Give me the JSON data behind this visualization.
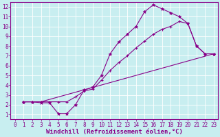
{
  "xlabel": "Windchill (Refroidissement éolien,°C)",
  "bg_color": "#c8eef0",
  "line_color": "#880088",
  "grid_color": "#aadddd",
  "xlim": [
    -0.5,
    23.5
  ],
  "ylim": [
    0.5,
    12.5
  ],
  "xticks": [
    0,
    1,
    2,
    3,
    4,
    5,
    6,
    7,
    8,
    9,
    10,
    11,
    12,
    13,
    14,
    15,
    16,
    17,
    18,
    19,
    20,
    21,
    22,
    23
  ],
  "yticks": [
    1,
    2,
    3,
    4,
    5,
    6,
    7,
    8,
    9,
    10,
    11,
    12
  ],
  "line1_x": [
    1,
    2,
    3,
    4,
    5,
    6,
    7,
    8,
    9,
    10,
    11,
    12,
    13,
    14,
    15,
    16,
    17,
    18,
    19,
    20,
    21,
    22,
    23
  ],
  "line1_y": [
    2.3,
    2.3,
    2.2,
    2.2,
    1.1,
    1.1,
    2.0,
    3.5,
    3.8,
    5.0,
    7.2,
    8.4,
    9.2,
    10.0,
    11.5,
    12.2,
    11.8,
    11.4,
    11.0,
    10.3,
    8.0,
    7.2,
    7.2
  ],
  "line2_x": [
    1,
    2,
    3,
    4,
    5,
    6,
    7,
    8,
    9,
    10,
    11,
    12,
    13,
    14,
    15,
    16,
    17,
    18,
    19,
    20,
    21,
    22,
    23
  ],
  "line2_y": [
    2.3,
    2.3,
    2.3,
    2.3,
    2.3,
    2.3,
    2.8,
    3.4,
    3.6,
    4.5,
    5.5,
    6.3,
    7.0,
    7.8,
    8.5,
    9.2,
    9.7,
    10.0,
    10.5,
    10.3,
    8.0,
    7.2,
    7.2
  ],
  "line3_x": [
    1,
    3,
    23
  ],
  "line3_y": [
    2.3,
    2.3,
    7.2
  ],
  "font_size_tick": 5.5,
  "font_size_label": 6.5
}
